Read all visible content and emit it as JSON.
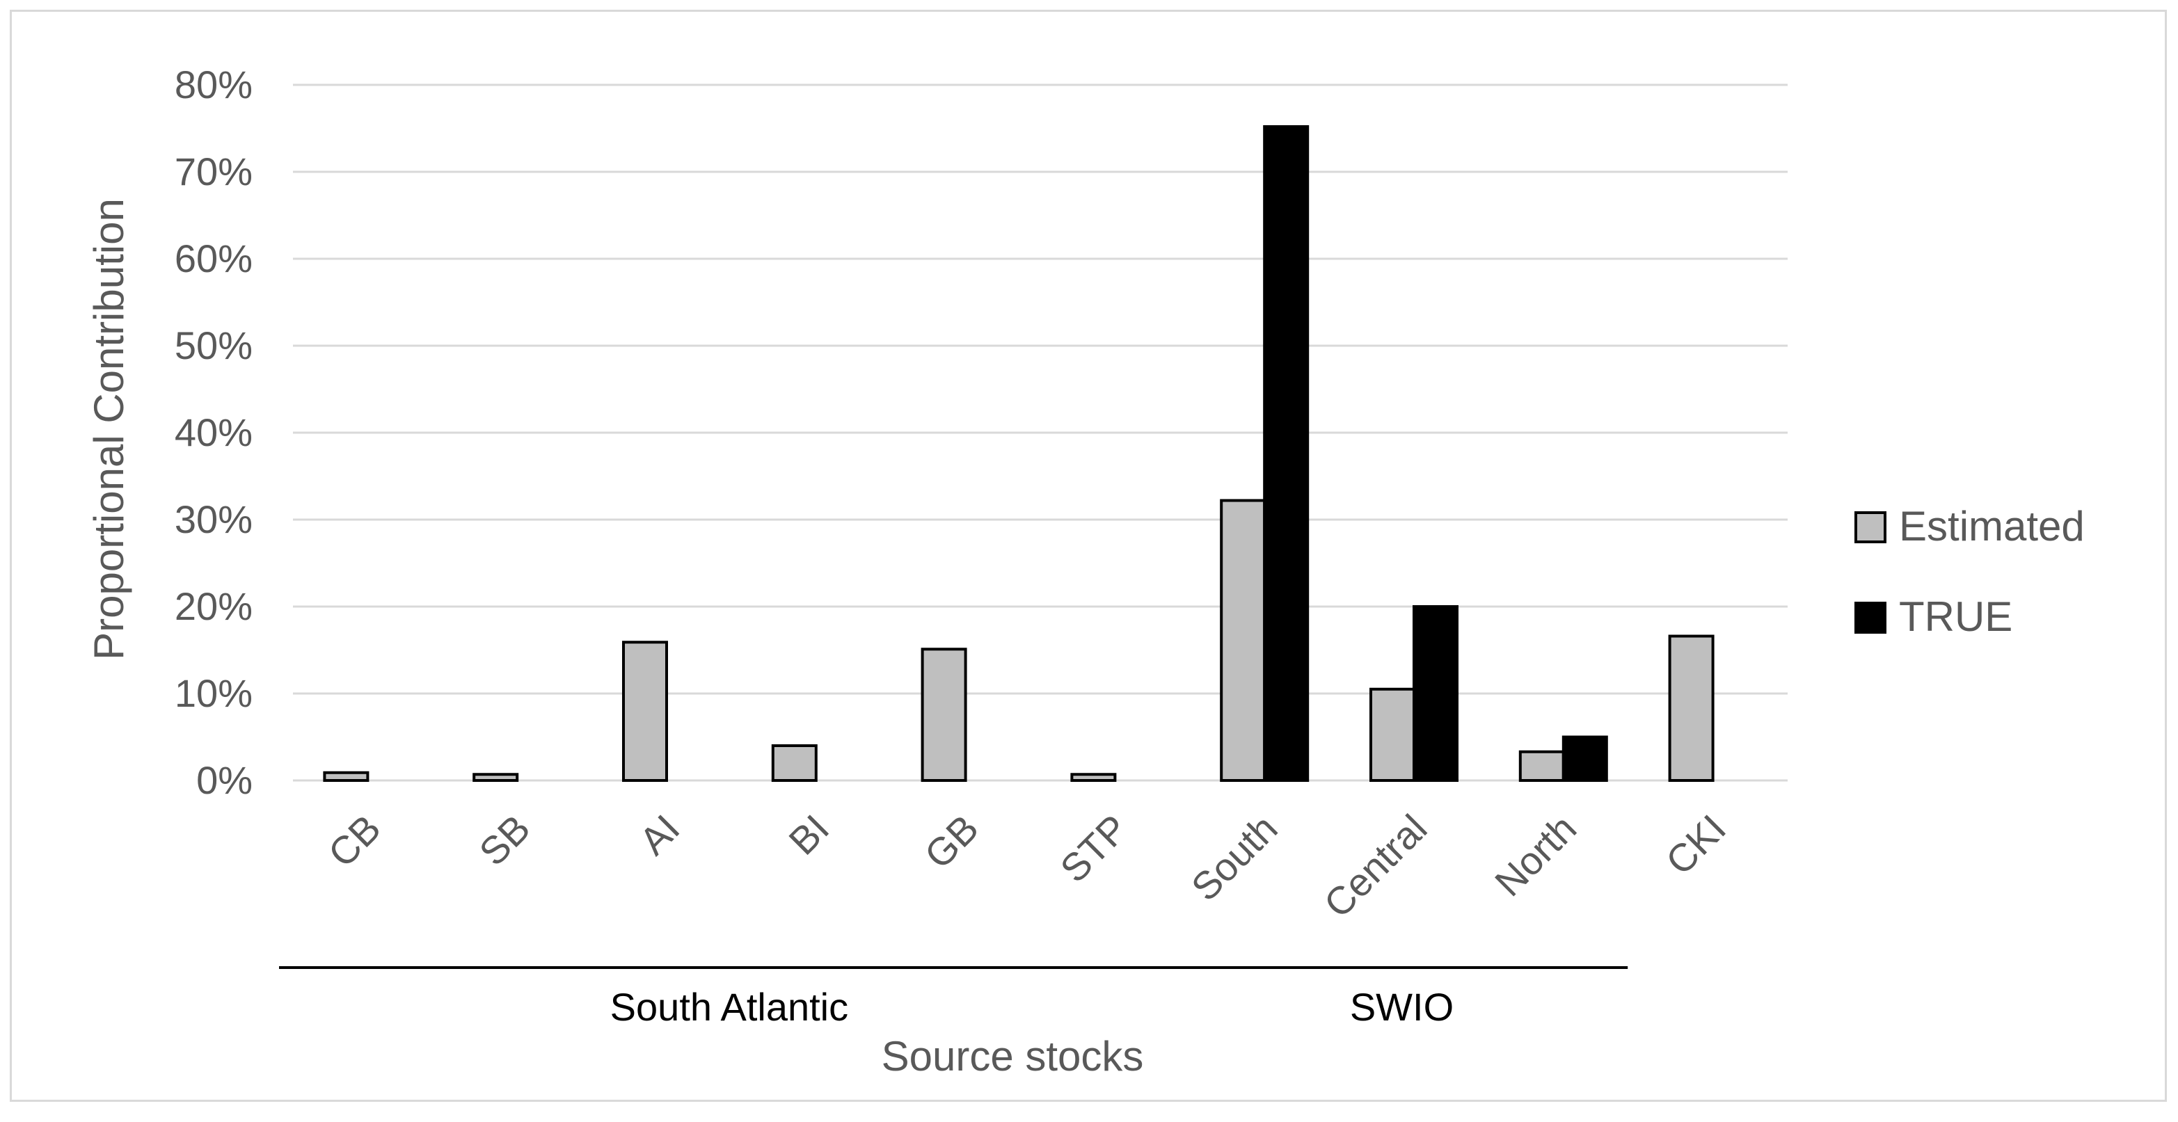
{
  "chart_data": {
    "type": "bar",
    "title": "",
    "xlabel": "Source stocks",
    "ylabel": "Proportional Contribution",
    "ylim": [
      0,
      80
    ],
    "yticks": [
      "0%",
      "10%",
      "20%",
      "30%",
      "40%",
      "50%",
      "60%",
      "70%",
      "80%"
    ],
    "grid": true,
    "legend_position": "right",
    "categories": [
      "CB",
      "SB",
      "AI",
      "BI",
      "GB",
      "STP",
      "South",
      "Central",
      "North",
      "CKI"
    ],
    "series": [
      {
        "name": "Estimated",
        "color": "#bfbfbf",
        "values": [
          0.9,
          0.7,
          15.9,
          4.0,
          15.1,
          0.7,
          32.2,
          10.5,
          3.3,
          16.6
        ]
      },
      {
        "name": "TRUE",
        "color": "#000000",
        "values": [
          0,
          0,
          0,
          0,
          0,
          0,
          75.2,
          20.0,
          5.0,
          0
        ]
      }
    ],
    "groups": [
      {
        "label": "South Atlantic",
        "categories": [
          "CB",
          "SB",
          "AI",
          "BI",
          "GB",
          "STP"
        ]
      },
      {
        "label": "SWIO",
        "categories": [
          "South",
          "Central",
          "North"
        ]
      }
    ]
  }
}
